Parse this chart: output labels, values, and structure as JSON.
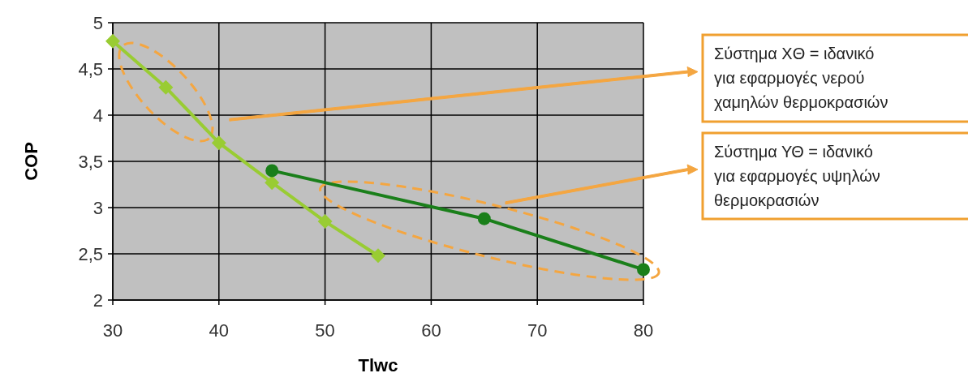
{
  "chart_data": {
    "type": "line",
    "xlabel": "Tlwc",
    "ylabel": "COP",
    "xlim": [
      30,
      80
    ],
    "xticks": [
      30,
      40,
      50,
      60,
      70,
      80
    ],
    "ylim": [
      2,
      5
    ],
    "yticks": [
      2,
      {
        "value": 2.5,
        "label": "2,5"
      },
      3,
      {
        "value": 3.5,
        "label": "3,5"
      },
      4,
      {
        "value": 4.5,
        "label": "4,5"
      },
      5
    ],
    "grid": true,
    "line_style": "solid",
    "series": [
      {
        "color": "#99cc33",
        "marker": "diamond",
        "x": [
          30,
          35,
          40,
          45,
          50,
          55
        ],
        "values": [
          4.8,
          4.3,
          3.7,
          3.27,
          2.85,
          2.48
        ]
      },
      {
        "color": "#1a7f1a",
        "marker": "circle",
        "x": [
          45,
          65,
          80
        ],
        "values": [
          3.4,
          2.88,
          2.33
        ]
      }
    ],
    "annotations": [
      "Σύστημα ΧΘ = ιδανικό για εφαρμογές νερού χαμηλών θερμοκρασιών",
      "Σύστημα ΥΘ = ιδανικό για εφαρμογές υψηλών θερμοκρασιών"
    ]
  }
}
